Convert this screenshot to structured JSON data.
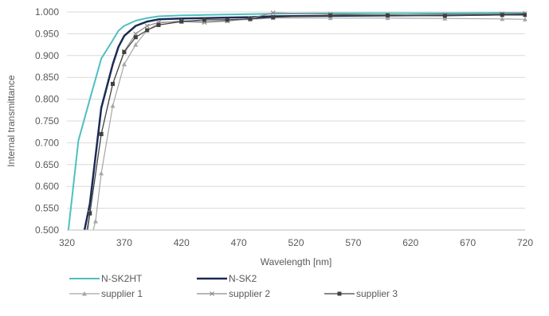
{
  "chart_data": {
    "type": "line",
    "title": "",
    "xlabel": "Wavelength [nm]",
    "ylabel": "Internal transmittance",
    "xlim": [
      320,
      720
    ],
    "ylim": [
      0.5,
      1.0
    ],
    "x_ticks": [
      "320",
      "370",
      "420",
      "470",
      "520",
      "570",
      "620",
      "670",
      "720"
    ],
    "y_ticks": [
      "0.500",
      "0.550",
      "0.600",
      "0.650",
      "0.700",
      "0.750",
      "0.800",
      "0.850",
      "0.900",
      "0.950",
      "1.000"
    ],
    "grid": "horizontal",
    "legend_position": "bottom",
    "series": [
      {
        "name": "N-SK2HT",
        "color": "#4fbfbf",
        "width": 2,
        "marker": "none",
        "points": [
          [
            320,
            0.47
          ],
          [
            330,
            0.705
          ],
          [
            340,
            0.8
          ],
          [
            350,
            0.893
          ],
          [
            360,
            0.935
          ],
          [
            365,
            0.957
          ],
          [
            370,
            0.968
          ],
          [
            380,
            0.98
          ],
          [
            390,
            0.986
          ],
          [
            400,
            0.99
          ],
          [
            420,
            0.992
          ],
          [
            440,
            0.993
          ],
          [
            460,
            0.994
          ],
          [
            480,
            0.995
          ],
          [
            500,
            0.996
          ],
          [
            550,
            0.997
          ],
          [
            600,
            0.997
          ],
          [
            650,
            0.997
          ],
          [
            700,
            0.998
          ],
          [
            720,
            0.998
          ]
        ]
      },
      {
        "name": "N-SK2",
        "color": "#1b2a55",
        "width": 2.5,
        "marker": "none",
        "points": [
          [
            333,
            0.47
          ],
          [
            340,
            0.56
          ],
          [
            350,
            0.78
          ],
          [
            360,
            0.88
          ],
          [
            365,
            0.92
          ],
          [
            370,
            0.945
          ],
          [
            380,
            0.968
          ],
          [
            390,
            0.978
          ],
          [
            400,
            0.983
          ],
          [
            420,
            0.985
          ],
          [
            440,
            0.986
          ],
          [
            460,
            0.987
          ],
          [
            480,
            0.988
          ],
          [
            500,
            0.99
          ],
          [
            550,
            0.991
          ],
          [
            600,
            0.992
          ],
          [
            650,
            0.993
          ],
          [
            700,
            0.994
          ],
          [
            720,
            0.994
          ]
        ]
      },
      {
        "name": "supplier 1",
        "color": "#a6a6a6",
        "width": 1.2,
        "marker": "triangle",
        "points": [
          [
            341,
            0.48
          ],
          [
            345,
            0.52
          ],
          [
            350,
            0.63
          ],
          [
            360,
            0.785
          ],
          [
            370,
            0.88
          ],
          [
            380,
            0.925
          ],
          [
            390,
            0.958
          ],
          [
            400,
            0.974
          ],
          [
            420,
            0.98
          ],
          [
            440,
            0.978
          ],
          [
            460,
            0.98
          ],
          [
            480,
            0.983
          ],
          [
            500,
            0.986
          ],
          [
            550,
            0.986
          ],
          [
            600,
            0.986
          ],
          [
            650,
            0.985
          ],
          [
            700,
            0.984
          ],
          [
            720,
            0.983
          ]
        ]
      },
      {
        "name": "supplier 2",
        "color": "#8c8c8c",
        "width": 1.2,
        "marker": "x",
        "points": [
          [
            336,
            0.48
          ],
          [
            340,
            0.54
          ],
          [
            350,
            0.72
          ],
          [
            360,
            0.835
          ],
          [
            370,
            0.91
          ],
          [
            380,
            0.95
          ],
          [
            390,
            0.968
          ],
          [
            400,
            0.976
          ],
          [
            420,
            0.978
          ],
          [
            440,
            0.976
          ],
          [
            460,
            0.979
          ],
          [
            480,
            0.985
          ],
          [
            500,
            0.998
          ],
          [
            550,
            0.995
          ],
          [
            600,
            0.993
          ],
          [
            650,
            0.994
          ],
          [
            700,
            0.996
          ],
          [
            720,
            0.997
          ]
        ]
      },
      {
        "name": "supplier 3",
        "color": "#404040",
        "width": 1.2,
        "marker": "square",
        "points": [
          [
            337,
            0.48
          ],
          [
            340,
            0.538
          ],
          [
            350,
            0.72
          ],
          [
            360,
            0.835
          ],
          [
            370,
            0.908
          ],
          [
            380,
            0.942
          ],
          [
            390,
            0.958
          ],
          [
            400,
            0.97
          ],
          [
            420,
            0.978
          ],
          [
            440,
            0.982
          ],
          [
            460,
            0.982
          ],
          [
            480,
            0.984
          ],
          [
            500,
            0.988
          ],
          [
            550,
            0.992
          ],
          [
            600,
            0.992
          ],
          [
            650,
            0.991
          ],
          [
            700,
            0.993
          ],
          [
            720,
            0.993
          ]
        ]
      }
    ]
  }
}
